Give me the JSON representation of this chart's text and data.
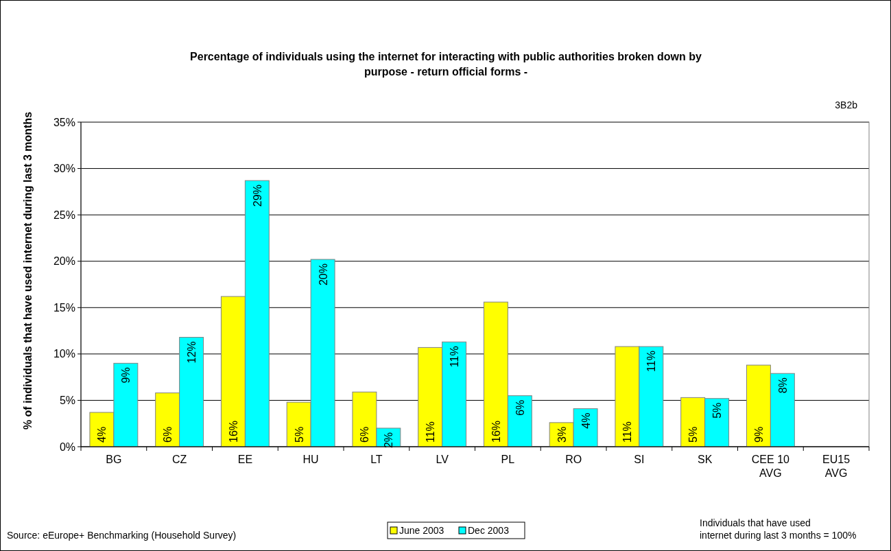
{
  "chart_data": {
    "type": "bar",
    "title": "Percentage of individuals using the internet for interacting with public authorities broken down by\npurpose - return official forms -",
    "ylabel": "% of individuals that have used internet during last 3 months",
    "categories": [
      "BG",
      "CZ",
      "EE",
      "HU",
      "LT",
      "LV",
      "PL",
      "RO",
      "SI",
      "SK",
      "CEE 10\nAVG",
      "EU15\nAVG"
    ],
    "series": [
      {
        "name": "June 2003",
        "color": "#ffff00",
        "values": [
          3.7,
          5.8,
          16.2,
          4.8,
          5.9,
          10.7,
          15.6,
          2.6,
          10.8,
          5.3,
          8.8,
          null
        ],
        "value_labels": [
          "4%",
          "6%",
          "16%",
          "5%",
          "6%",
          "11%",
          "16%",
          "3%",
          "11%",
          "5%",
          "9%",
          null
        ]
      },
      {
        "name": "Dec 2003",
        "color": "#00ffff",
        "values": [
          9.0,
          11.8,
          28.7,
          20.2,
          2.0,
          11.3,
          5.5,
          4.1,
          10.8,
          5.2,
          7.9,
          null
        ],
        "value_labels": [
          "9%",
          "12%",
          "29%",
          "20%",
          "2%",
          "11%",
          "6%",
          "4%",
          "11%",
          "5%",
          "8%",
          null
        ]
      }
    ],
    "ylim": [
      0,
      35
    ],
    "yticks": [
      {
        "value": 0,
        "label": "0%"
      },
      {
        "value": 5,
        "label": "5%"
      },
      {
        "value": 10,
        "label": "10%"
      },
      {
        "value": 15,
        "label": "15%"
      },
      {
        "value": 20,
        "label": "20%"
      },
      {
        "value": 25,
        "label": "25%"
      },
      {
        "value": 30,
        "label": "30%"
      },
      {
        "value": 35,
        "label": "35%"
      }
    ],
    "grid": "y",
    "legend": "bottom",
    "annotations": [
      "3B2b",
      "Source: eEurope+ Benchmarking (Household Survey)",
      "Individuals that have used\ninternet during last 3 months  = 100%"
    ]
  }
}
